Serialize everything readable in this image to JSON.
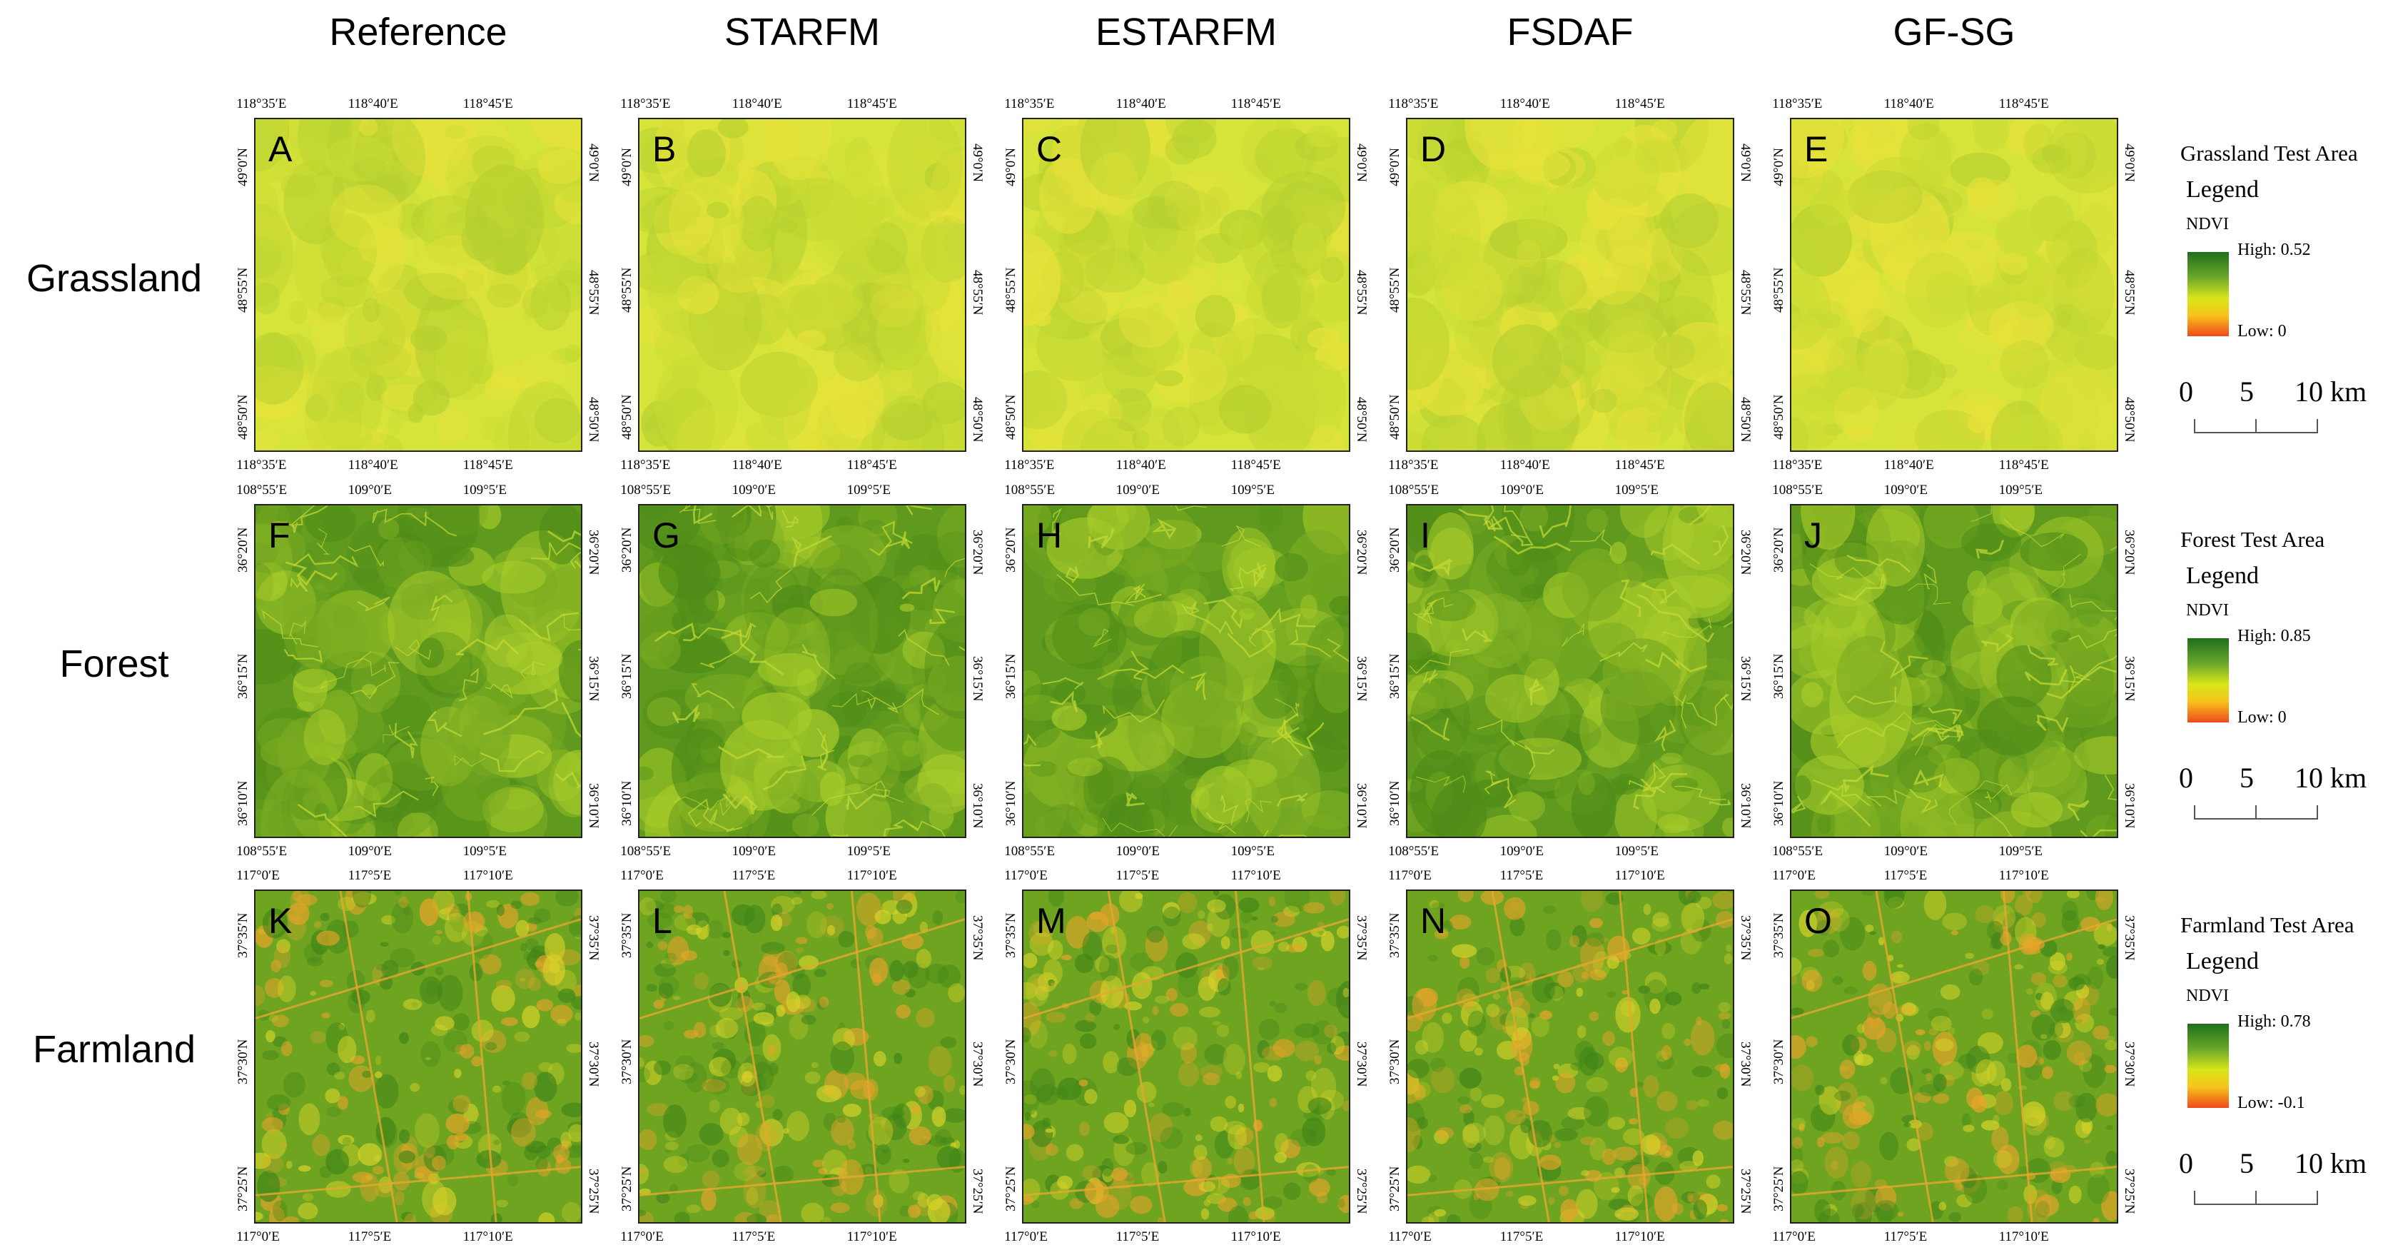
{
  "columns": [
    "Reference",
    "STARFM",
    "ESTARFM",
    "FSDAF",
    "GF-SG"
  ],
  "rows": [
    {
      "label": "Grassland",
      "letters": [
        "A",
        "B",
        "C",
        "D",
        "E"
      ],
      "top_ticks": [
        "118°35′E",
        "118°40′E",
        "118°45′E"
      ],
      "bottom_ticks": [
        "118°35′E",
        "118°40′E",
        "118°45′E"
      ],
      "left_ticks": [
        "49°0′N",
        "48°55′N",
        "48°50′N"
      ],
      "right_ticks": [
        "49°0′N",
        "48°55′N",
        "48°50′N"
      ],
      "legend": {
        "title": "Grassland Test Area",
        "legend_label": "Legend",
        "index": "NDVI",
        "high": "High: 0.52",
        "low": "Low: 0"
      },
      "palette": {
        "base": "#d6e43a",
        "a": "#c9dc34",
        "b": "#e8e23a",
        "c": "#b6d030"
      }
    },
    {
      "label": "Forest",
      "letters": [
        "F",
        "G",
        "H",
        "I",
        "J"
      ],
      "top_ticks": [
        "108°55′E",
        "109°0′E",
        "109°5′E"
      ],
      "bottom_ticks": [
        "108°55′E",
        "109°0′E",
        "109°5′E"
      ],
      "left_ticks": [
        "36°20′N",
        "36°15′N",
        "36°10′N"
      ],
      "right_ticks": [
        "36°20′N",
        "36°15′N",
        "36°10′N"
      ],
      "legend": {
        "title": "Forest Test Area",
        "legend_label": "Legend",
        "index": "NDVI",
        "high": "High: 0.85",
        "low": "Low: 0"
      },
      "palette": {
        "base": "#5f9a1e",
        "a": "#4e8c18",
        "b": "#a9cc2a",
        "c": "#7aab22"
      }
    },
    {
      "label": "Farmland",
      "letters": [
        "K",
        "L",
        "M",
        "N",
        "O"
      ],
      "top_ticks": [
        "117°0′E",
        "117°5′E",
        "117°10′E"
      ],
      "bottom_ticks": [
        "117°0′E",
        "117°5′E",
        "117°10′E"
      ],
      "left_ticks": [
        "37°35′N",
        "37°30′N",
        "37°25′N"
      ],
      "right_ticks": [
        "37°35′N",
        "37°30′N",
        "37°25′N"
      ],
      "legend": {
        "title": "Farmland Test Area",
        "legend_label": "Legend",
        "index": "NDVI",
        "high": "High: 0.78",
        "low": "Low: -0.1"
      },
      "palette": {
        "base": "#6ea420",
        "a": "#d8d42a",
        "b": "#e9a42a",
        "c": "#3f8418"
      }
    }
  ],
  "scale": {
    "labels": [
      "0",
      "5",
      "10 km"
    ]
  },
  "colors": {
    "ramp_high": "#1f6e1c",
    "ramp_mid": "#d9e61a",
    "ramp_low": "#ef4a1a"
  }
}
